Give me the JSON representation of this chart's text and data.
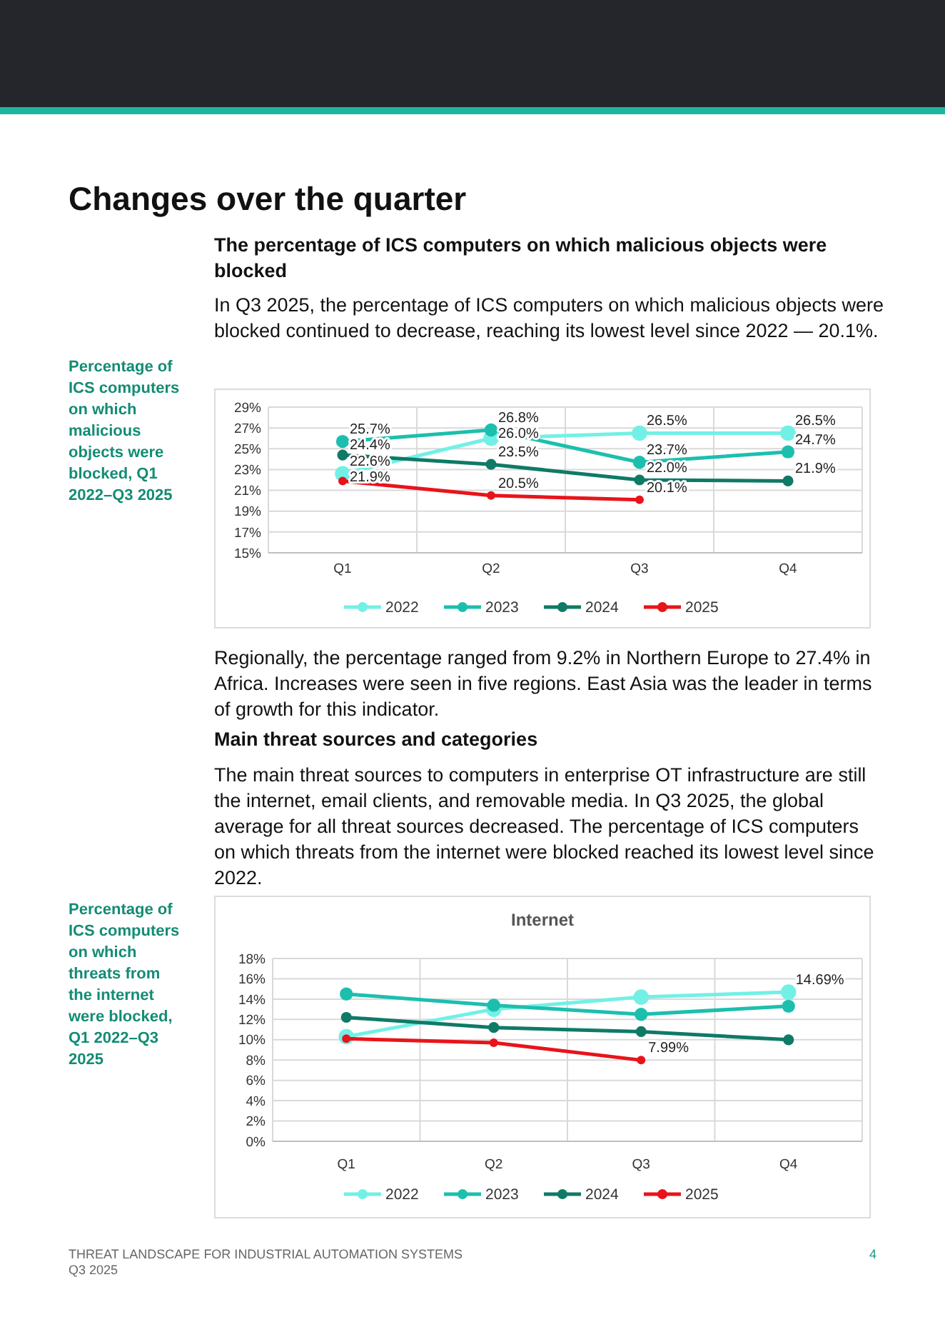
{
  "chart_data": [
    {
      "type": "line",
      "subtitle": "Percentage of ICS computers on which malicious objects were blocked, Q1 2022–Q3 2025",
      "annotations": [
        "Changes over the quarter",
        "The percentage of ICS computers on which malicious objects were blocked",
        "In Q3 2025, the percentage of ICS computers on which malicious objects were blocked continued to decrease, reaching its lowest level since 2022 — 20.1%."
      ],
      "categories": [
        "Q1",
        "Q2",
        "Q3",
        "Q4"
      ],
      "ylim": [
        15,
        29
      ],
      "yticks": [
        {
          "value": 15,
          "label": "15%"
        },
        {
          "value": 17,
          "label": "17%"
        },
        {
          "value": 19,
          "label": "19%"
        },
        {
          "value": 21,
          "label": "21%"
        },
        {
          "value": 23,
          "label": "23%"
        },
        {
          "value": 25,
          "label": "25%"
        },
        {
          "value": 27,
          "label": "27%"
        },
        {
          "value": 29,
          "label": "29%"
        }
      ],
      "grid": true,
      "legend": "bottom",
      "marker": "circle",
      "series": [
        {
          "name": "2022",
          "color": "#72f0e6",
          "values": [
            22.6,
            26.0,
            26.5,
            26.5
          ],
          "value_labels": [
            "22.6%",
            "26.0%",
            "26.5%",
            "26.5%"
          ]
        },
        {
          "name": "2023",
          "color": "#1cbfae",
          "values": [
            25.7,
            26.8,
            23.7,
            24.7
          ],
          "value_labels": [
            "25.7%",
            "26.8%",
            "23.7%",
            "24.7%"
          ]
        },
        {
          "name": "2024",
          "color": "#0f7a66",
          "values": [
            24.4,
            23.5,
            22.0,
            21.9
          ],
          "value_labels": [
            "24.4%",
            "23.5%",
            "22.0%",
            "21.9%"
          ]
        },
        {
          "name": "2025",
          "color": "#e8141a",
          "values": [
            21.9,
            20.5,
            20.1,
            null
          ],
          "value_labels": [
            "21.9%",
            "20.5%",
            "20.1%",
            null
          ]
        }
      ]
    },
    {
      "type": "line",
      "title": "Internet",
      "subtitle": "Percentage of ICS computers on which threats from the internet were blocked, Q1 2022–Q3 2025",
      "annotations": [
        "Regionally, the percentage ranged from 9.2% in Northern Europe to 27.4% in Africa. Increases were seen in five regions. East Asia was the leader in terms of growth for this indicator.",
        "Main threat sources and categories",
        "The main threat sources to computers in enterprise OT infrastructure are still the internet, email clients, and removable media. In Q3 2025, the global average for all threat sources decreased. The percentage of ICS computers on which threats from the internet were blocked reached its lowest level since 2022.",
        "THREAT LANDSCAPE FOR INDUSTRIAL AUTOMATION SYSTEMS",
        "Q3 2025",
        "4"
      ],
      "categories": [
        "Q1",
        "Q2",
        "Q3",
        "Q4"
      ],
      "ylim": [
        0,
        18
      ],
      "yticks": [
        {
          "value": 0,
          "label": "0%"
        },
        {
          "value": 2,
          "label": "2%"
        },
        {
          "value": 4,
          "label": "4%"
        },
        {
          "value": 6,
          "label": "6%"
        },
        {
          "value": 8,
          "label": "8%"
        },
        {
          "value": 10,
          "label": "10%"
        },
        {
          "value": 12,
          "label": "12%"
        },
        {
          "value": 14,
          "label": "14%"
        },
        {
          "value": 16,
          "label": "16%"
        },
        {
          "value": 18,
          "label": "18%"
        }
      ],
      "grid": true,
      "legend": "bottom",
      "marker": "circle",
      "series": [
        {
          "name": "2022",
          "color": "#72f0e6",
          "values": [
            10.3,
            13.0,
            14.2,
            14.69
          ],
          "value_labels": [
            null,
            null,
            null,
            "14.69%"
          ]
        },
        {
          "name": "2023",
          "color": "#1cbfae",
          "values": [
            14.5,
            13.4,
            12.5,
            13.3
          ]
        },
        {
          "name": "2024",
          "color": "#0f7a66",
          "values": [
            12.2,
            11.2,
            10.8,
            10.0
          ]
        },
        {
          "name": "2025",
          "color": "#e8141a",
          "values": [
            10.1,
            9.7,
            7.99,
            null
          ],
          "value_labels": [
            null,
            null,
            "7.99%",
            null
          ]
        }
      ]
    }
  ]
}
